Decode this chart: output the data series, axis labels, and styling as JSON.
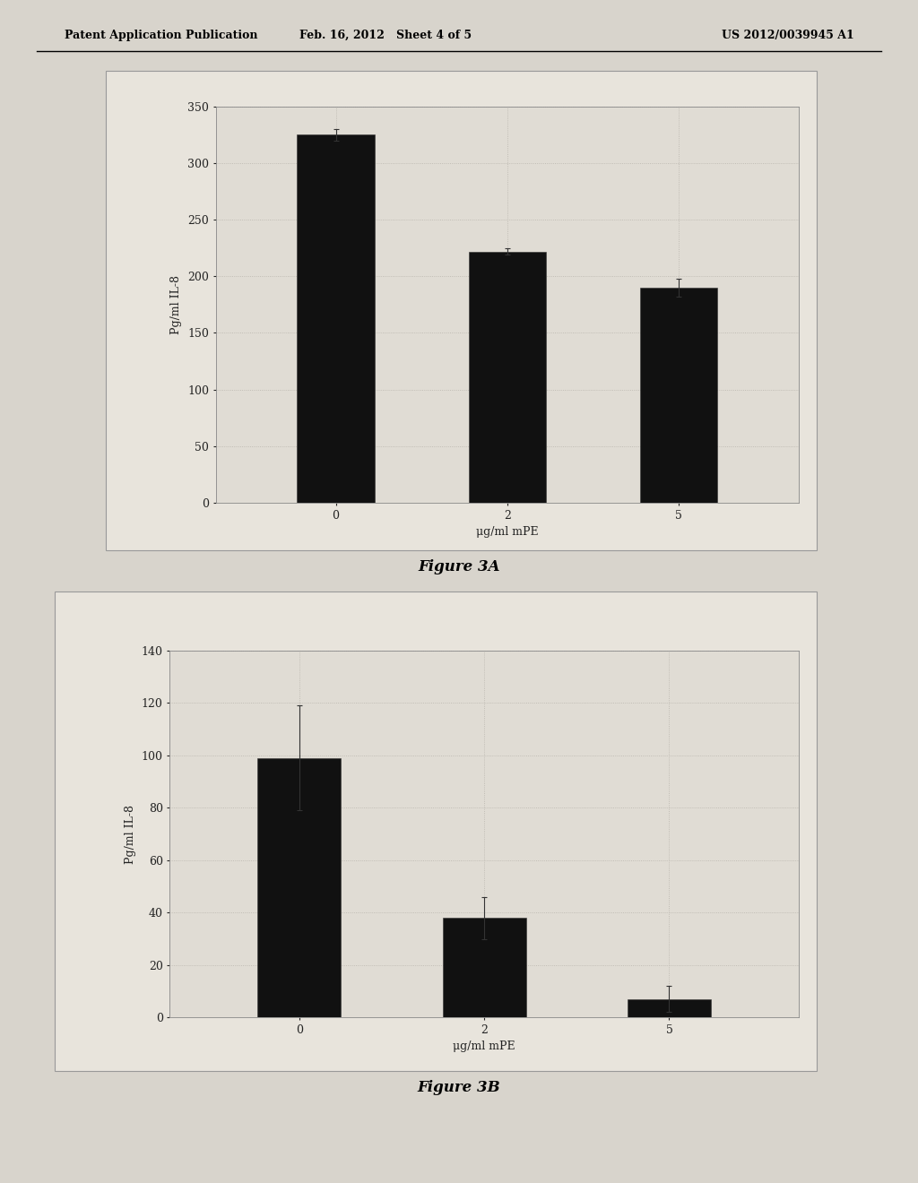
{
  "page_header": {
    "left": "Patent Application Publication",
    "center": "Feb. 16, 2012   Sheet 4 of 5",
    "right": "US 2012/0039945 A1"
  },
  "chart_a": {
    "categories": [
      "0",
      "2",
      "5"
    ],
    "values": [
      325,
      222,
      190
    ],
    "errors": [
      5,
      3,
      8
    ],
    "ylabel": "Pg/ml IL-8",
    "xlabel": "μg/ml mPE",
    "ylim": [
      0,
      350
    ],
    "yticks": [
      0,
      50,
      100,
      150,
      200,
      250,
      300,
      350
    ],
    "bar_color": "#111111",
    "caption": "Figure 3A"
  },
  "chart_b": {
    "categories": [
      "0",
      "2",
      "5"
    ],
    "values": [
      99,
      38,
      7
    ],
    "errors": [
      20,
      8,
      5
    ],
    "ylabel": "Pg/ml IL-8",
    "xlabel": "μg/ml mPE",
    "ylim": [
      0,
      140
    ],
    "yticks": [
      0,
      20,
      40,
      60,
      80,
      100,
      120,
      140
    ],
    "bar_color": "#111111",
    "caption": "Figure 3B"
  },
  "page_bg_color": "#d8d4cc",
  "chart_bg_color": "#e8e4dc",
  "plot_area_color": "#e0dcd4",
  "grid_color": "#b8b4ac",
  "bar_width": 0.45,
  "font_color": "#222222",
  "header_font_size": 9,
  "tick_font_size": 9,
  "label_font_size": 9,
  "caption_font_size": 12
}
